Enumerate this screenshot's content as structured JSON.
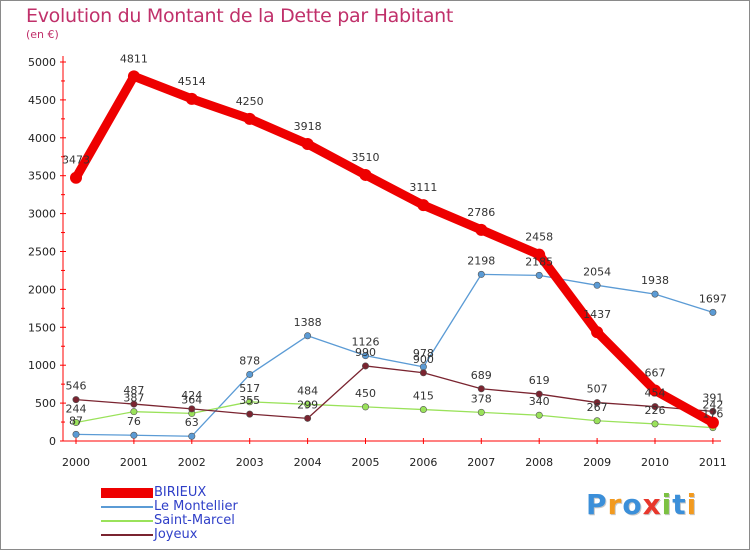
{
  "chart_data": {
    "type": "line",
    "title": "Evolution du Montant de la Dette par Habitant",
    "subtitle": "(en €)",
    "x": [
      "2000",
      "2001",
      "2002",
      "2003",
      "2004",
      "2005",
      "2006",
      "2007",
      "2008",
      "2009",
      "2010",
      "2011"
    ],
    "ylim": [
      0,
      5000
    ],
    "yticks": [
      0,
      500,
      1000,
      1500,
      2000,
      2500,
      3000,
      3500,
      4000,
      4500,
      5000
    ],
    "grid": false,
    "legend_position": "bottom-left",
    "series": [
      {
        "name": "BIRIEUX",
        "color": "#ee0000",
        "values": [
          3473,
          4811,
          4514,
          4250,
          3918,
          3510,
          3111,
          2786,
          2458,
          1437,
          667,
          242
        ],
        "labels": [
          "3473",
          "4811",
          "4514",
          "4250",
          "3918",
          "3510",
          "3111",
          "2786",
          "2458",
          "1437",
          "667",
          "242"
        ]
      },
      {
        "name": "Le Montellier",
        "color": "#5b9bd5",
        "values": [
          87,
          76,
          63,
          878,
          1388,
          1126,
          978,
          2198,
          2185,
          2054,
          1938,
          1697
        ],
        "labels": [
          "87",
          "76",
          "63",
          "878",
          "1388",
          "1126",
          "978",
          "2198",
          "2185",
          "2054",
          "1938",
          "1697"
        ]
      },
      {
        "name": "Saint-Marcel",
        "color": "#9ae25a",
        "values": [
          244,
          387,
          364,
          517,
          484,
          450,
          415,
          378,
          340,
          267,
          226,
          176
        ],
        "labels": [
          "244",
          "387",
          "364",
          "517",
          "484",
          "450",
          "415",
          "378",
          "340",
          "267",
          "226",
          "176"
        ]
      },
      {
        "name": "Joyeux",
        "color": "#7a2430",
        "values": [
          546,
          487,
          424,
          355,
          299,
          990,
          900,
          689,
          619,
          507,
          454,
          391
        ],
        "labels": [
          "546",
          "487",
          "424",
          "355",
          "299",
          "990",
          "900",
          "689",
          "619",
          "507",
          "454",
          "391"
        ]
      }
    ]
  },
  "logo": {
    "text": "Proxiti",
    "letters": [
      "P",
      "r",
      "o",
      "x",
      "i",
      "t",
      "i"
    ],
    "colors": [
      "#3b8fd9",
      "#f29a1f",
      "#3b8fd9",
      "#e8372c",
      "#7cc142",
      "#3b8fd9",
      "#f29a1f"
    ]
  }
}
